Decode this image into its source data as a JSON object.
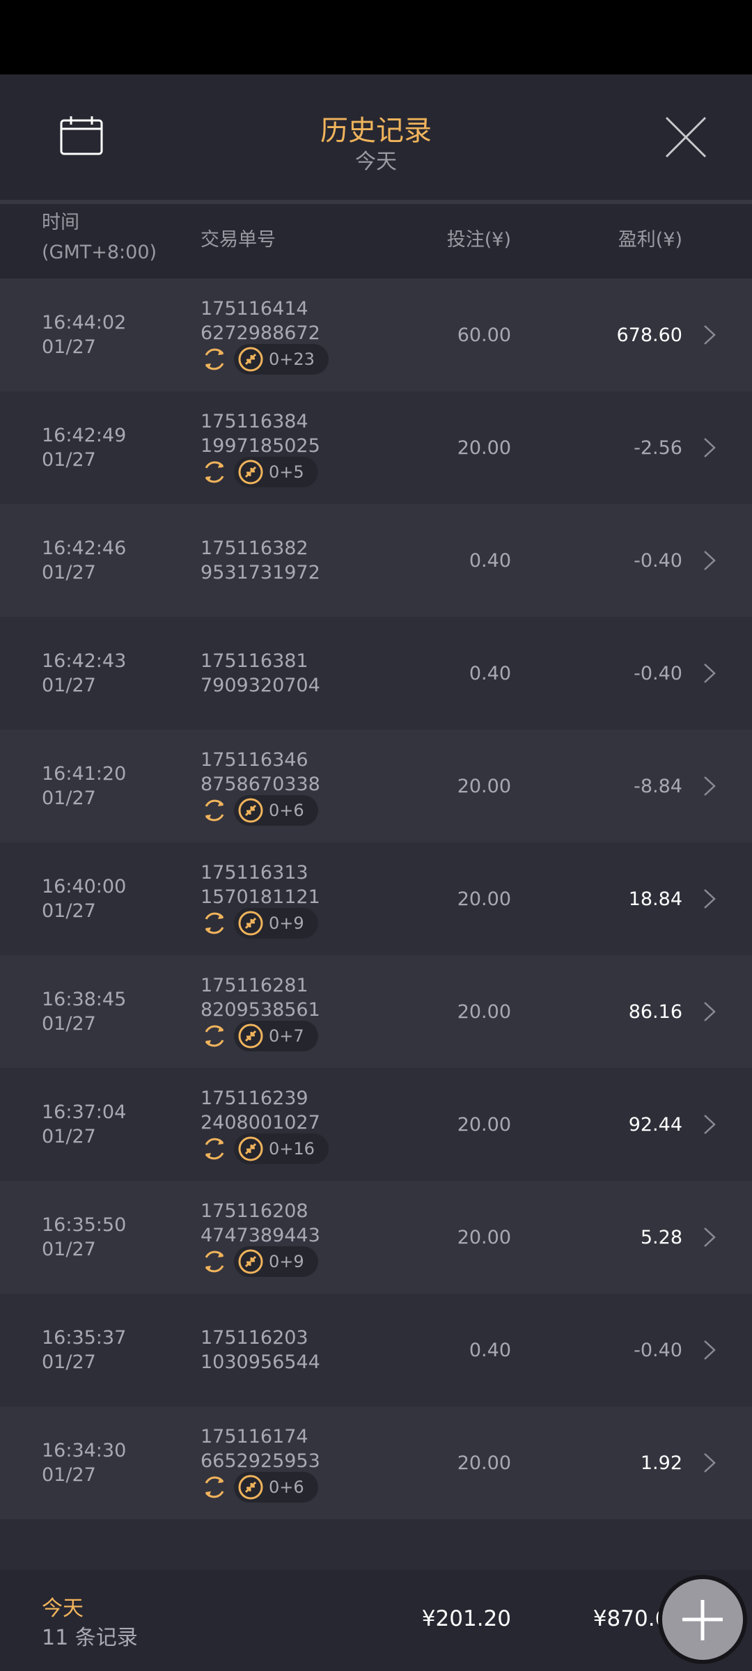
{
  "header": {
    "title": "历史记录",
    "subtitle": "今天",
    "calendar_icon": "calendar-icon",
    "close_icon": "close-icon"
  },
  "columns": {
    "time": "时间",
    "timezone": "(GMT+8:00)",
    "order": "交易单号",
    "stake": "投注(¥)",
    "profit": "盈利(¥)"
  },
  "colors": {
    "accent": "#f0b45c",
    "background": "#2c2c36"
  },
  "rows": [
    {
      "time": "16:44:02",
      "date": "01/27",
      "order1": "175116414",
      "order2": "6272988672",
      "badge": "0+23",
      "stake": "60.00",
      "profit": "678.60",
      "positive": true
    },
    {
      "time": "16:42:49",
      "date": "01/27",
      "order1": "175116384",
      "order2": "1997185025",
      "badge": "0+5",
      "stake": "20.00",
      "profit": "-2.56",
      "positive": false
    },
    {
      "time": "16:42:46",
      "date": "01/27",
      "order1": "175116382",
      "order2": "9531731972",
      "badge": null,
      "stake": "0.40",
      "profit": "-0.40",
      "positive": false
    },
    {
      "time": "16:42:43",
      "date": "01/27",
      "order1": "175116381",
      "order2": "7909320704",
      "badge": null,
      "stake": "0.40",
      "profit": "-0.40",
      "positive": false
    },
    {
      "time": "16:41:20",
      "date": "01/27",
      "order1": "175116346",
      "order2": "8758670338",
      "badge": "0+6",
      "stake": "20.00",
      "profit": "-8.84",
      "positive": false
    },
    {
      "time": "16:40:00",
      "date": "01/27",
      "order1": "175116313",
      "order2": "1570181121",
      "badge": "0+9",
      "stake": "20.00",
      "profit": "18.84",
      "positive": true
    },
    {
      "time": "16:38:45",
      "date": "01/27",
      "order1": "175116281",
      "order2": "8209538561",
      "badge": "0+7",
      "stake": "20.00",
      "profit": "86.16",
      "positive": true
    },
    {
      "time": "16:37:04",
      "date": "01/27",
      "order1": "175116239",
      "order2": "2408001027",
      "badge": "0+16",
      "stake": "20.00",
      "profit": "92.44",
      "positive": true
    },
    {
      "time": "16:35:50",
      "date": "01/27",
      "order1": "175116208",
      "order2": "4747389443",
      "badge": "0+9",
      "stake": "20.00",
      "profit": "5.28",
      "positive": true
    },
    {
      "time": "16:35:37",
      "date": "01/27",
      "order1": "175116203",
      "order2": "1030956544",
      "badge": null,
      "stake": "0.40",
      "profit": "-0.40",
      "positive": false
    },
    {
      "time": "16:34:30",
      "date": "01/27",
      "order1": "175116174",
      "order2": "6652925953",
      "badge": "0+6",
      "stake": "20.00",
      "profit": "1.92",
      "positive": true
    }
  ],
  "footer": {
    "period": "今天",
    "count": "11 条记录",
    "total_stake": "¥201.20",
    "total_profit": "¥870.64"
  }
}
